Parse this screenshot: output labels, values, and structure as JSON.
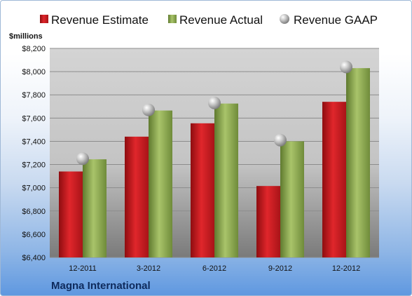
{
  "chart_data": {
    "type": "bar",
    "categories": [
      "12-2011",
      "3-2012",
      "6-2012",
      "9-2012",
      "12-2012"
    ],
    "series": [
      {
        "name": "Revenue Estimate",
        "values": [
          7140,
          7440,
          7555,
          7015,
          7740
        ],
        "color": "#c0171c"
      },
      {
        "name": "Revenue Actual",
        "values": [
          7245,
          7665,
          7725,
          7400,
          8030
        ],
        "color": "#8aa650"
      },
      {
        "name": "Revenue GAAP",
        "values": [
          7250,
          7670,
          7730,
          7410,
          8040
        ],
        "color": "#b5b5b5",
        "marker": "sphere"
      }
    ],
    "ylabel": "$millions",
    "ylim": [
      6400,
      8200
    ],
    "yticks": [
      6400,
      6600,
      6800,
      7000,
      7200,
      7400,
      7600,
      7800,
      8000,
      8200
    ],
    "ytick_labels": [
      "$6,400",
      "$6,600",
      "$6,800",
      "$7,000",
      "$7,200",
      "$7,400",
      "$7,600",
      "$7,800",
      "$8,000",
      "$8,200"
    ],
    "grid": true,
    "legend": "top",
    "company": "Magna International"
  }
}
